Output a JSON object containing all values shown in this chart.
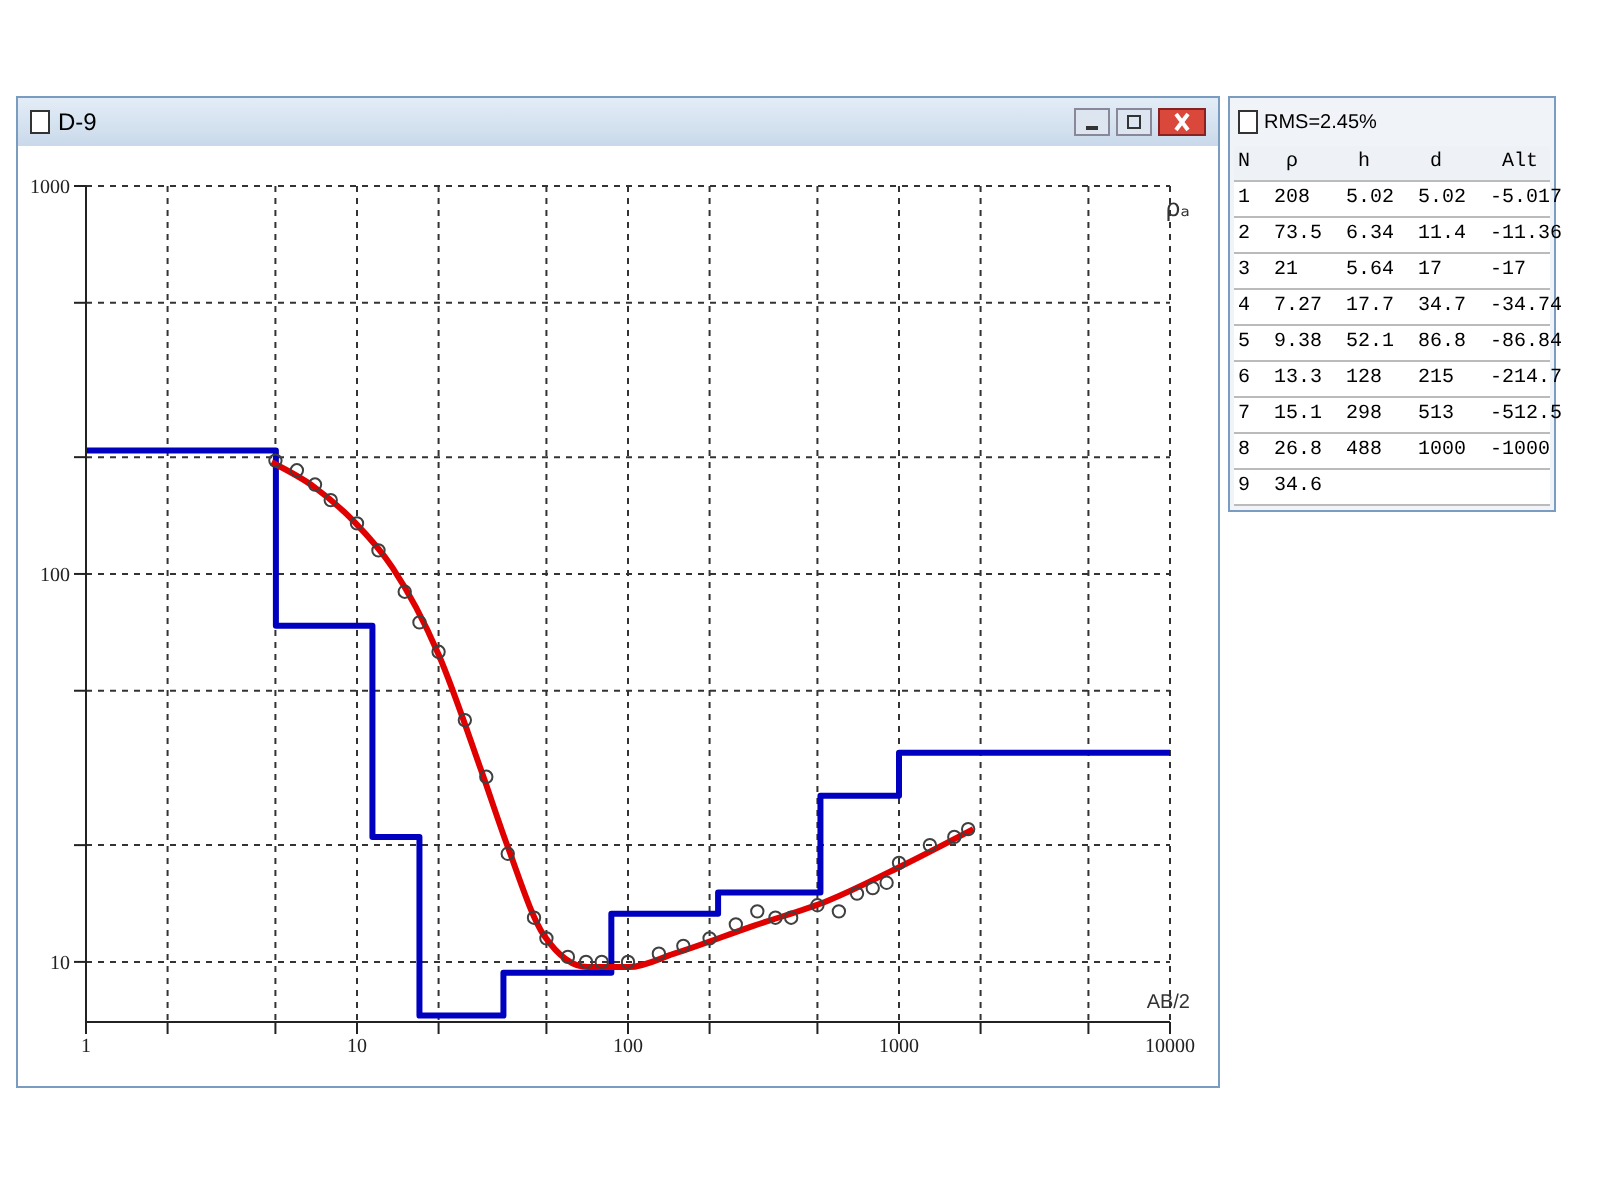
{
  "chart_data": [
    {
      "type": "line",
      "title": "D-9",
      "xlabel": "AB/2",
      "ylabel": "ρₐ",
      "log": "xy",
      "grid": true,
      "legend": false,
      "xlim": [
        1,
        10000
      ],
      "xticks": [
        1,
        {
          "value": 2,
          "label": null
        },
        {
          "value": 5,
          "label": null
        },
        10,
        {
          "value": 20,
          "label": null
        },
        {
          "value": 50,
          "label": null
        },
        100,
        {
          "value": 200,
          "label": null
        },
        {
          "value": 500,
          "label": null
        },
        1000,
        {
          "value": 2000,
          "label": null
        },
        {
          "value": 5000,
          "label": null
        },
        10000
      ],
      "ylim": [
        7,
        1000
      ],
      "yticks": [
        10,
        {
          "value": 20,
          "label": null
        },
        {
          "value": 50,
          "label": null
        },
        100,
        {
          "value": 200,
          "label": null
        },
        {
          "value": 500,
          "label": null
        },
        1000
      ],
      "series": [
        {
          "type": "step",
          "color": "#0000c0",
          "marker": "none",
          "x": [
            1,
            5.02,
            11.4,
            17,
            34.7,
            86.8,
            215,
            513,
            1000,
            10000
          ],
          "values": [
            208,
            73.5,
            21,
            7.27,
            9.38,
            13.3,
            15.1,
            26.8,
            34.6,
            34.6
          ]
        },
        {
          "type": "scatter",
          "color": "#404040",
          "marker": "circle",
          "x": [
            5,
            6,
            7,
            8,
            10,
            12,
            15,
            17,
            20,
            25,
            30,
            36,
            45,
            50,
            60,
            70,
            80,
            100,
            130,
            160,
            200,
            250,
            300,
            350,
            400,
            500,
            600,
            700,
            800,
            900,
            1000,
            1300,
            1600,
            1800
          ],
          "values": [
            196,
            185,
            170,
            155,
            135,
            115,
            90,
            75,
            63,
            42,
            30,
            19,
            13,
            11.5,
            10.3,
            10,
            10,
            10,
            10.5,
            11,
            11.5,
            12.5,
            13.5,
            13,
            13,
            14,
            13.5,
            15,
            15.5,
            16,
            18,
            20,
            21,
            22
          ]
        },
        {
          "type": "line",
          "color": "#e00000",
          "marker": "none",
          "x": [
            4.84,
            7,
            9.8,
            13.5,
            20,
            28.8,
            36,
            49,
            71,
            101,
            148,
            292,
            549,
            1026,
            1880
          ],
          "values": [
            194,
            167,
            136,
            104,
            62,
            31,
            19.8,
            11.7,
            9.7,
            9.7,
            10.5,
            12.4,
            14.4,
            17.7,
            22
          ]
        }
      ]
    },
    {
      "type": "other",
      "title": "RMS=2.45%",
      "annotations": [
        "N   ρ     h     d     Alt",
        "1  208   5.02  5.02  -5.017",
        "2  73.5  6.34  11.4  -11.36",
        "3  21    5.64  17    -17",
        "4  7.27  17.7  34.7  -34.74",
        "5  9.38  52.1  86.8  -86.84",
        "6  13.3  128   215   -214.7",
        "7  15.1  298   513   -512.5",
        "8  26.8  488   1000  -1000",
        "9  34.6"
      ]
    }
  ]
}
